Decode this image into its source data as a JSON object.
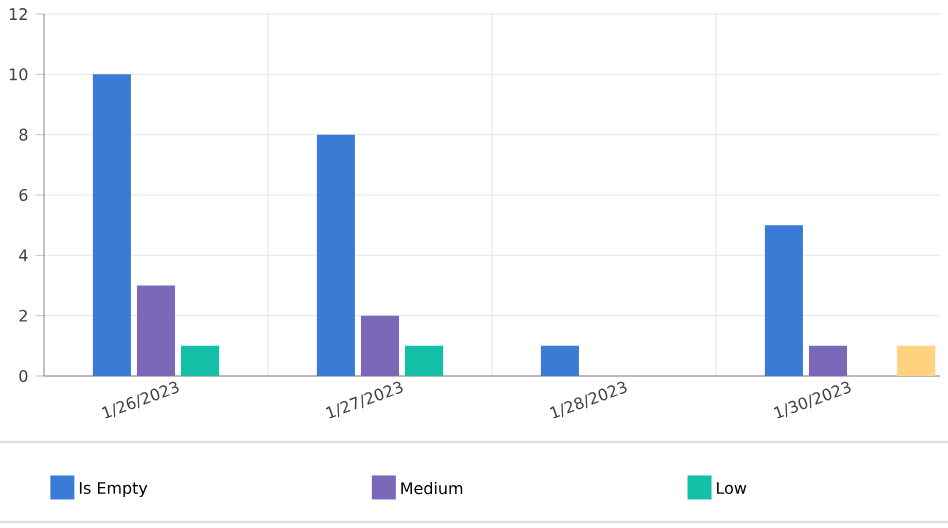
{
  "chart_data": {
    "type": "bar",
    "categories": [
      "1/26/2023",
      "1/27/2023",
      "1/28/2023",
      "1/30/2023"
    ],
    "series": [
      {
        "name": "Is Empty",
        "color": "#3a7bd5",
        "values": [
          10,
          8,
          1,
          5
        ]
      },
      {
        "name": "Medium",
        "color": "#7b68b8",
        "values": [
          3,
          2,
          null,
          1
        ]
      },
      {
        "name": "Low",
        "color": "#13bfa6",
        "values": [
          1,
          1,
          null,
          null
        ]
      },
      {
        "color": "#ffd27f",
        "values": [
          null,
          null,
          null,
          1
        ]
      }
    ],
    "ylim": [
      0,
      12
    ],
    "yticks": [
      0,
      2,
      4,
      6,
      8,
      10,
      12
    ],
    "grid": true,
    "legend": "bottom"
  }
}
